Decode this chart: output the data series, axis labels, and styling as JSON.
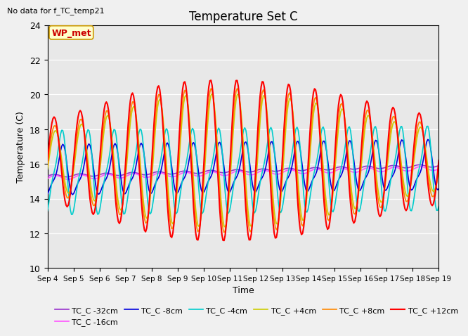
{
  "title": "Temperature Set C",
  "subtitle": "No data for f_TC_temp21",
  "xlabel": "Time",
  "ylabel": "Temperature (C)",
  "ylim": [
    10,
    24
  ],
  "xlim_start": 0,
  "xlim_end": 15,
  "xtick_positions": [
    0,
    1,
    2,
    3,
    4,
    5,
    6,
    7,
    8,
    9,
    10,
    11,
    12,
    13,
    14,
    15
  ],
  "xtick_labels": [
    "Sep 4",
    "Sep 5",
    "Sep 6",
    "Sep 7",
    "Sep 8",
    "Sep 9",
    "Sep 10",
    "Sep 11",
    "Sep 12",
    "Sep 13",
    "Sep 14",
    "Sep 15",
    "Sep 16",
    "Sep 17",
    "Sep 18",
    "Sep 19"
  ],
  "wp_met_label": "WP_met",
  "fig_bg": "#f0f0f0",
  "plot_bg": "#e8e8e8",
  "lines": {
    "TC_C -32cm": {
      "color": "#9933cc",
      "lw": 1.2
    },
    "TC_C -16cm": {
      "color": "#ff55ff",
      "lw": 1.2
    },
    "TC_C -8cm": {
      "color": "#0000dd",
      "lw": 1.2
    },
    "TC_C -4cm": {
      "color": "#00cccc",
      "lw": 1.2
    },
    "TC_C +4cm": {
      "color": "#cccc00",
      "lw": 1.2
    },
    "TC_C +8cm": {
      "color": "#ff8800",
      "lw": 1.2
    },
    "TC_C +12cm": {
      "color": "#ff0000",
      "lw": 1.5
    }
  },
  "legend_labels": [
    "TC_C -32cm",
    "TC_C -16cm",
    "TC_C -8cm",
    "TC_C -4cm",
    "TC_C +4cm",
    "TC_C +8cm",
    "TC_C +12cm"
  ]
}
